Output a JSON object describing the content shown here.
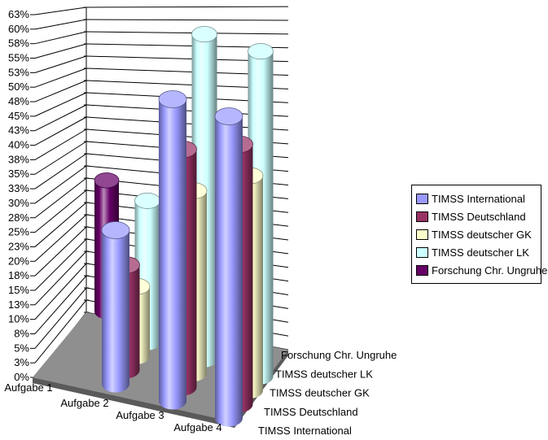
{
  "chart_data": {
    "type": "bar",
    "variant": "3d-cylinder",
    "title": "",
    "unit": "%",
    "categories": [
      "Aufgabe 1",
      "Aufgabe 2",
      "Aufgabe 3",
      "Aufgabe 4"
    ],
    "series": [
      {
        "name": "TIMSS International",
        "color": "#9999FF",
        "values": [
          null,
          27,
          53,
          53
        ]
      },
      {
        "name": "TIMSS Deutschland",
        "color": "#993366",
        "values": [
          null,
          19,
          43,
          47
        ]
      },
      {
        "name": "TIMSS deutscher GK",
        "color": "#FFFFCC",
        "values": [
          null,
          13,
          34,
          40
        ]
      },
      {
        "name": "TIMSS deutscher LK",
        "color": "#CCFFFF",
        "values": [
          null,
          27,
          62,
          62
        ]
      },
      {
        "name": "Forschung Chr. Ungruhe",
        "color": "#660066",
        "values": [
          26,
          null,
          null,
          null
        ]
      }
    ],
    "y_axis": {
      "min": 0,
      "max": 62.5,
      "step": 2.5,
      "tick_labels": [
        "0%",
        "3%",
        "5%",
        "8%",
        "10%",
        "13%",
        "15%",
        "18%",
        "20%",
        "23%",
        "25%",
        "28%",
        "30%",
        "33%",
        "35%",
        "38%",
        "40%",
        "43%",
        "45%",
        "48%",
        "50%",
        "53%",
        "55%",
        "58%",
        "60%",
        "63%"
      ]
    },
    "depth_axis_labels": [
      "Forschung Chr. Ungruhe",
      "TIMSS deutscher LK",
      "TIMSS deutscher GK",
      "TIMSS Deutschland",
      "TIMSS International"
    ],
    "legend": {
      "position": "right",
      "entries": [
        "TIMSS International",
        "TIMSS Deutschland",
        "TIMSS deutscher GK",
        "TIMSS deutscher LK",
        "Forschung Chr. Ungruhe"
      ]
    },
    "colors": {
      "background": "#FFFFFF",
      "wall": "#FFFFFF",
      "gridline": "#000000",
      "floor_top": "#8F8F8F",
      "floor_side": "#5A5A5A",
      "text": "#000000"
    }
  }
}
